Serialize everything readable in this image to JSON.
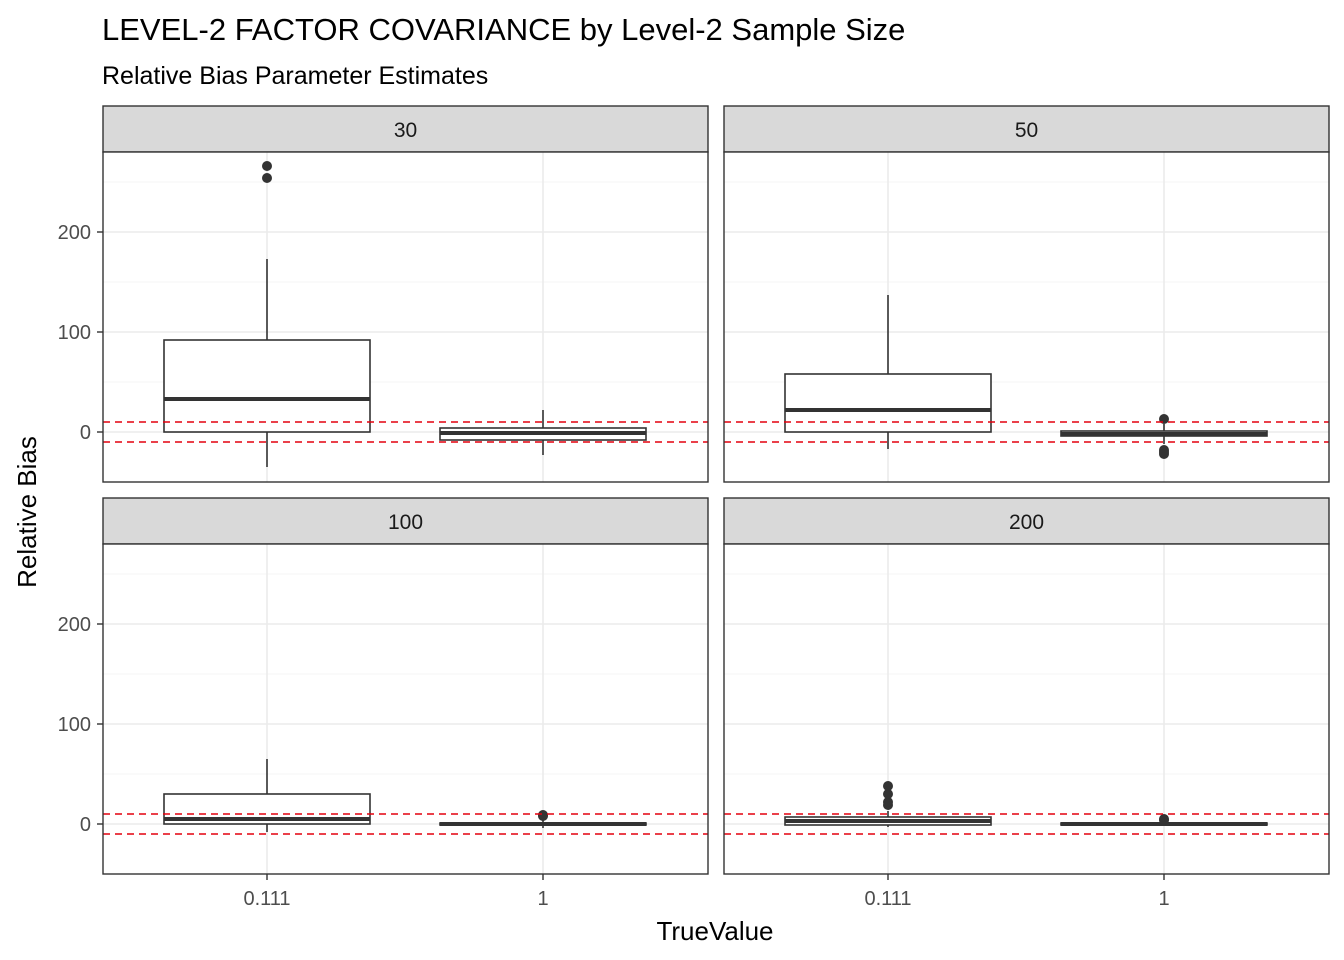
{
  "chart_data": {
    "type": "boxplot",
    "title": "LEVEL-2 FACTOR COVARIANCE by Level-2 Sample Size",
    "subtitle": "Relative Bias Parameter Estimates",
    "xlabel": "TrueValue",
    "ylabel": "Relative Bias",
    "categories": [
      "0.111",
      "1"
    ],
    "ylim": [
      -50,
      280
    ],
    "yticks": [
      0,
      100,
      200
    ],
    "grid": true,
    "legend": "none",
    "reference_lines": [
      10,
      -10
    ],
    "colors": {
      "box_stroke": "#333333",
      "reference_line": "#e3000f",
      "strip_fill": "#d9d9d9",
      "grid_major": "#ebebeb",
      "grid_minor": "#f5f5f5"
    },
    "panels": [
      {
        "label": "30",
        "boxes": [
          {
            "category": "0.111",
            "whisker_low": -35,
            "q1": 0,
            "median": 33,
            "q3": 92,
            "whisker_high": 173,
            "outliers": [
              254,
              266
            ]
          },
          {
            "category": "1",
            "whisker_low": -23,
            "q1": -8,
            "median": -1,
            "q3": 4,
            "whisker_high": 22,
            "outliers": []
          }
        ]
      },
      {
        "label": "50",
        "boxes": [
          {
            "category": "0.111",
            "whisker_low": -17,
            "q1": 0,
            "median": 22,
            "q3": 58,
            "whisker_high": 137,
            "outliers": []
          },
          {
            "category": "1",
            "whisker_low": -12,
            "q1": -4,
            "median": -2,
            "q3": 1,
            "whisker_high": 8,
            "outliers": [
              13,
              -18,
              -20,
              -22
            ]
          }
        ]
      },
      {
        "label": "100",
        "boxes": [
          {
            "category": "0.111",
            "whisker_low": -8,
            "q1": 0,
            "median": 5,
            "q3": 30,
            "whisker_high": 65,
            "outliers": []
          },
          {
            "category": "1",
            "whisker_low": -4,
            "q1": -1,
            "median": 0,
            "q3": 1,
            "whisker_high": 4,
            "outliers": [
              9,
              8
            ]
          }
        ]
      },
      {
        "label": "200",
        "boxes": [
          {
            "category": "0.111",
            "whisker_low": -3,
            "q1": -1,
            "median": 3,
            "q3": 7,
            "whisker_high": 13,
            "outliers": [
              19,
              22,
              30,
              38
            ]
          },
          {
            "category": "1",
            "whisker_low": -2,
            "q1": -1,
            "median": 0,
            "q3": 1,
            "whisker_high": 2,
            "outliers": [
              5,
              4
            ]
          }
        ]
      }
    ]
  }
}
